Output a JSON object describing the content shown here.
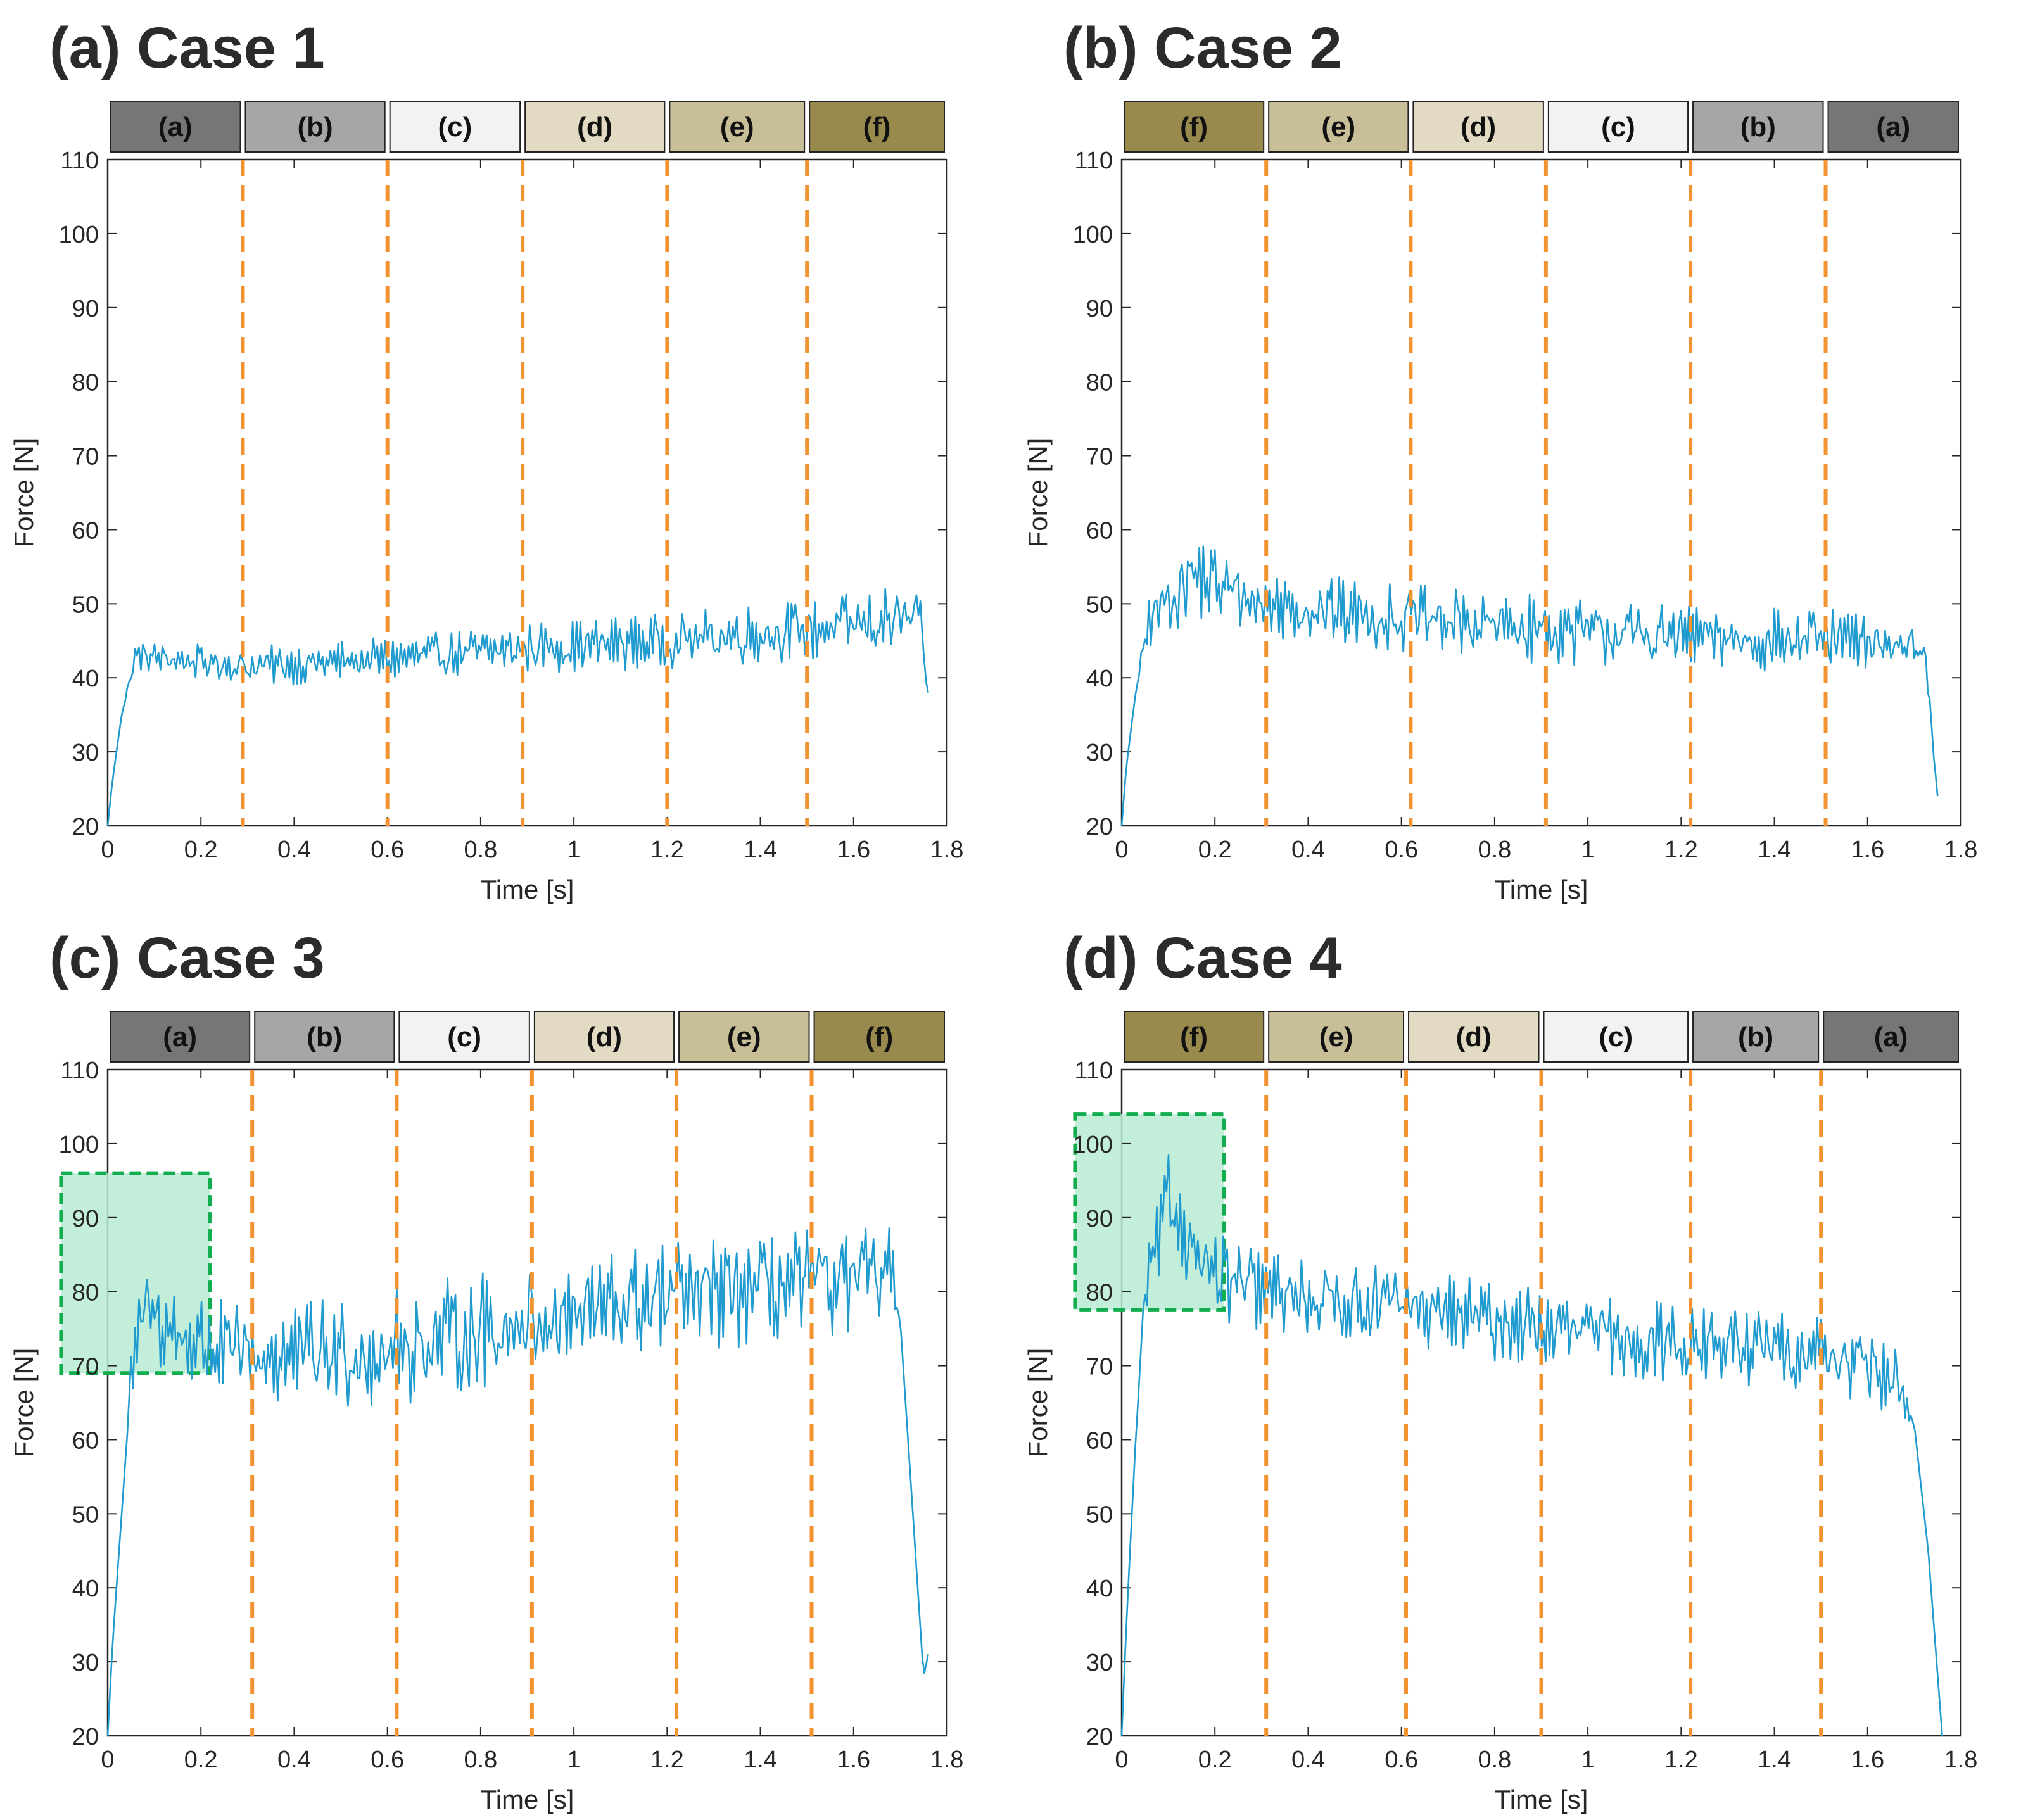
{
  "palette": {
    "a": "#767676",
    "b": "#a6a6a6",
    "c": "#f2f2f2",
    "d": "#e2dac2",
    "e": "#c8bf98",
    "f": "#978a4c",
    "line": "#1f9bd0",
    "divider": "#f29332",
    "highlight_fill": "#b8ecd3",
    "highlight_stroke": "#12ad4e"
  },
  "chart_data": [
    {
      "type": "line",
      "title": "(a) Case 1",
      "xlabel": "Time [s]",
      "ylabel": "Force [N]",
      "xlim": [
        0,
        1.8
      ],
      "ylim": [
        20,
        110
      ],
      "xticks": [
        "0",
        "0.2",
        "0.4",
        "0.6",
        "0.8",
        "1",
        "1.2",
        "1.4",
        "1.6",
        "1.8"
      ],
      "yticks": [
        "20",
        "30",
        "40",
        "50",
        "60",
        "70",
        "80",
        "90",
        "100",
        "110"
      ],
      "segments": [
        {
          "label": "(a)",
          "color_key": "a",
          "start": 0,
          "end": 0.29
        },
        {
          "label": "(b)",
          "color_key": "b",
          "start": 0.29,
          "end": 0.6
        },
        {
          "label": "(c)",
          "color_key": "c",
          "start": 0.6,
          "end": 0.89
        },
        {
          "label": "(d)",
          "color_key": "d",
          "start": 0.89,
          "end": 1.2
        },
        {
          "label": "(e)",
          "color_key": "e",
          "start": 1.2,
          "end": 1.5
        },
        {
          "label": "(f)",
          "color_key": "f",
          "start": 1.5,
          "end": 1.8
        }
      ],
      "dividers": [
        0.29,
        0.6,
        0.89,
        1.2,
        1.5
      ],
      "series_envelope": {
        "x": [
          0,
          0.01,
          0.03,
          0.06,
          0.3,
          0.6,
          0.9,
          1.2,
          1.5,
          1.74,
          1.76
        ],
        "mean": [
          20,
          26,
          35,
          43,
          41.5,
          42.5,
          44,
          45,
          46.5,
          48,
          38
        ],
        "amplitude": [
          0,
          0,
          0,
          1.5,
          2,
          2.2,
          2.5,
          2.8,
          3.2,
          3.5,
          0
        ]
      },
      "highlight": null
    },
    {
      "type": "line",
      "title": "(b) Case 2",
      "xlabel": "Time [s]",
      "ylabel": "Force [N]",
      "xlim": [
        0,
        1.8
      ],
      "ylim": [
        20,
        110
      ],
      "xticks": [
        "0",
        "0.2",
        "0.4",
        "0.6",
        "0.8",
        "1",
        "1.2",
        "1.4",
        "1.6",
        "1.8"
      ],
      "yticks": [
        "20",
        "30",
        "40",
        "50",
        "60",
        "70",
        "80",
        "90",
        "100",
        "110"
      ],
      "segments": [
        {
          "label": "(f)",
          "color_key": "f",
          "start": 0,
          "end": 0.31
        },
        {
          "label": "(e)",
          "color_key": "e",
          "start": 0.31,
          "end": 0.62
        },
        {
          "label": "(d)",
          "color_key": "d",
          "start": 0.62,
          "end": 0.91
        },
        {
          "label": "(c)",
          "color_key": "c",
          "start": 0.91,
          "end": 1.22
        },
        {
          "label": "(b)",
          "color_key": "b",
          "start": 1.22,
          "end": 1.51
        },
        {
          "label": "(a)",
          "color_key": "a",
          "start": 1.51,
          "end": 1.8
        }
      ],
      "dividers": [
        0.31,
        0.62,
        0.91,
        1.22,
        1.51
      ],
      "series_envelope": {
        "x": [
          0,
          0.01,
          0.03,
          0.06,
          0.15,
          0.3,
          0.6,
          0.9,
          1.2,
          1.5,
          1.72,
          1.75
        ],
        "mean": [
          20,
          28,
          38,
          48,
          54,
          50,
          48,
          46.5,
          45.5,
          45,
          44.5,
          24
        ],
        "amplitude": [
          0,
          0,
          0,
          3,
          4.5,
          3.5,
          3.5,
          3.5,
          3.2,
          3.2,
          3,
          0
        ]
      },
      "highlight": null
    },
    {
      "type": "line",
      "title": "(c) Case 3",
      "xlabel": "Time [s]",
      "ylabel": "Force [N]",
      "xlim": [
        0,
        1.8
      ],
      "ylim": [
        20,
        110
      ],
      "xticks": [
        "0",
        "0.2",
        "0.4",
        "0.6",
        "0.8",
        "1",
        "1.2",
        "1.4",
        "1.6",
        "1.8"
      ],
      "yticks": [
        "20",
        "30",
        "40",
        "50",
        "60",
        "70",
        "80",
        "90",
        "100",
        "110"
      ],
      "segments": [
        {
          "label": "(a)",
          "color_key": "a",
          "start": 0,
          "end": 0.31
        },
        {
          "label": "(b)",
          "color_key": "b",
          "start": 0.31,
          "end": 0.62
        },
        {
          "label": "(c)",
          "color_key": "c",
          "start": 0.62,
          "end": 0.91
        },
        {
          "label": "(d)",
          "color_key": "d",
          "start": 0.91,
          "end": 1.22
        },
        {
          "label": "(e)",
          "color_key": "e",
          "start": 1.22,
          "end": 1.51
        },
        {
          "label": "(f)",
          "color_key": "f",
          "start": 1.51,
          "end": 1.8
        }
      ],
      "dividers": [
        0.31,
        0.62,
        0.91,
        1.22,
        1.51
      ],
      "series_envelope": {
        "x": [
          0,
          0.01,
          0.03,
          0.05,
          0.08,
          0.15,
          0.3,
          0.6,
          0.9,
          1.2,
          1.5,
          1.68,
          1.7,
          1.75,
          1.76
        ],
        "mean": [
          20,
          32,
          50,
          68,
          78,
          74,
          71,
          72,
          76,
          79,
          81,
          82,
          76,
          28,
          31
        ],
        "amplitude": [
          0,
          0,
          0,
          3,
          5,
          5,
          5,
          6,
          6,
          6,
          5.5,
          5,
          0,
          0,
          0
        ]
      },
      "highlight": {
        "x0": -0.1,
        "x1": 0.22,
        "y0": 69,
        "y1": 96
      }
    },
    {
      "type": "line",
      "title": "(d) Case 4",
      "xlabel": "Time [s]",
      "ylabel": "Force [N]",
      "xlim": [
        0,
        1.8
      ],
      "ylim": [
        20,
        110
      ],
      "xticks": [
        "0",
        "0.2",
        "0.4",
        "0.6",
        "0.8",
        "1",
        "1.2",
        "1.4",
        "1.6",
        "1.8"
      ],
      "yticks": [
        "20",
        "30",
        "40",
        "50",
        "60",
        "70",
        "80",
        "90",
        "100",
        "110"
      ],
      "segments": [
        {
          "label": "(f)",
          "color_key": "f",
          "start": 0,
          "end": 0.31
        },
        {
          "label": "(e)",
          "color_key": "e",
          "start": 0.31,
          "end": 0.61
        },
        {
          "label": "(d)",
          "color_key": "d",
          "start": 0.61,
          "end": 0.9
        },
        {
          "label": "(c)",
          "color_key": "c",
          "start": 0.9,
          "end": 1.22
        },
        {
          "label": "(b)",
          "color_key": "b",
          "start": 1.22,
          "end": 1.5
        },
        {
          "label": "(a)",
          "color_key": "a",
          "start": 1.5,
          "end": 1.8
        }
      ],
      "dividers": [
        0.31,
        0.61,
        0.9,
        1.22,
        1.5
      ],
      "series_envelope": {
        "x": [
          0,
          0.01,
          0.03,
          0.05,
          0.1,
          0.2,
          0.3,
          0.6,
          0.9,
          1.2,
          1.5,
          1.66,
          1.7,
          1.73,
          1.76
        ],
        "mean": [
          20,
          35,
          60,
          80,
          92,
          82,
          80,
          78,
          75,
          73,
          72,
          68,
          62,
          45,
          20
        ],
        "amplitude": [
          0,
          0,
          0,
          3,
          5,
          4.5,
          4,
          4,
          4,
          4,
          4,
          3.5,
          0,
          0,
          0
        ]
      },
      "highlight": {
        "x0": -0.1,
        "x1": 0.22,
        "y0": 77.5,
        "y1": 104
      }
    }
  ]
}
